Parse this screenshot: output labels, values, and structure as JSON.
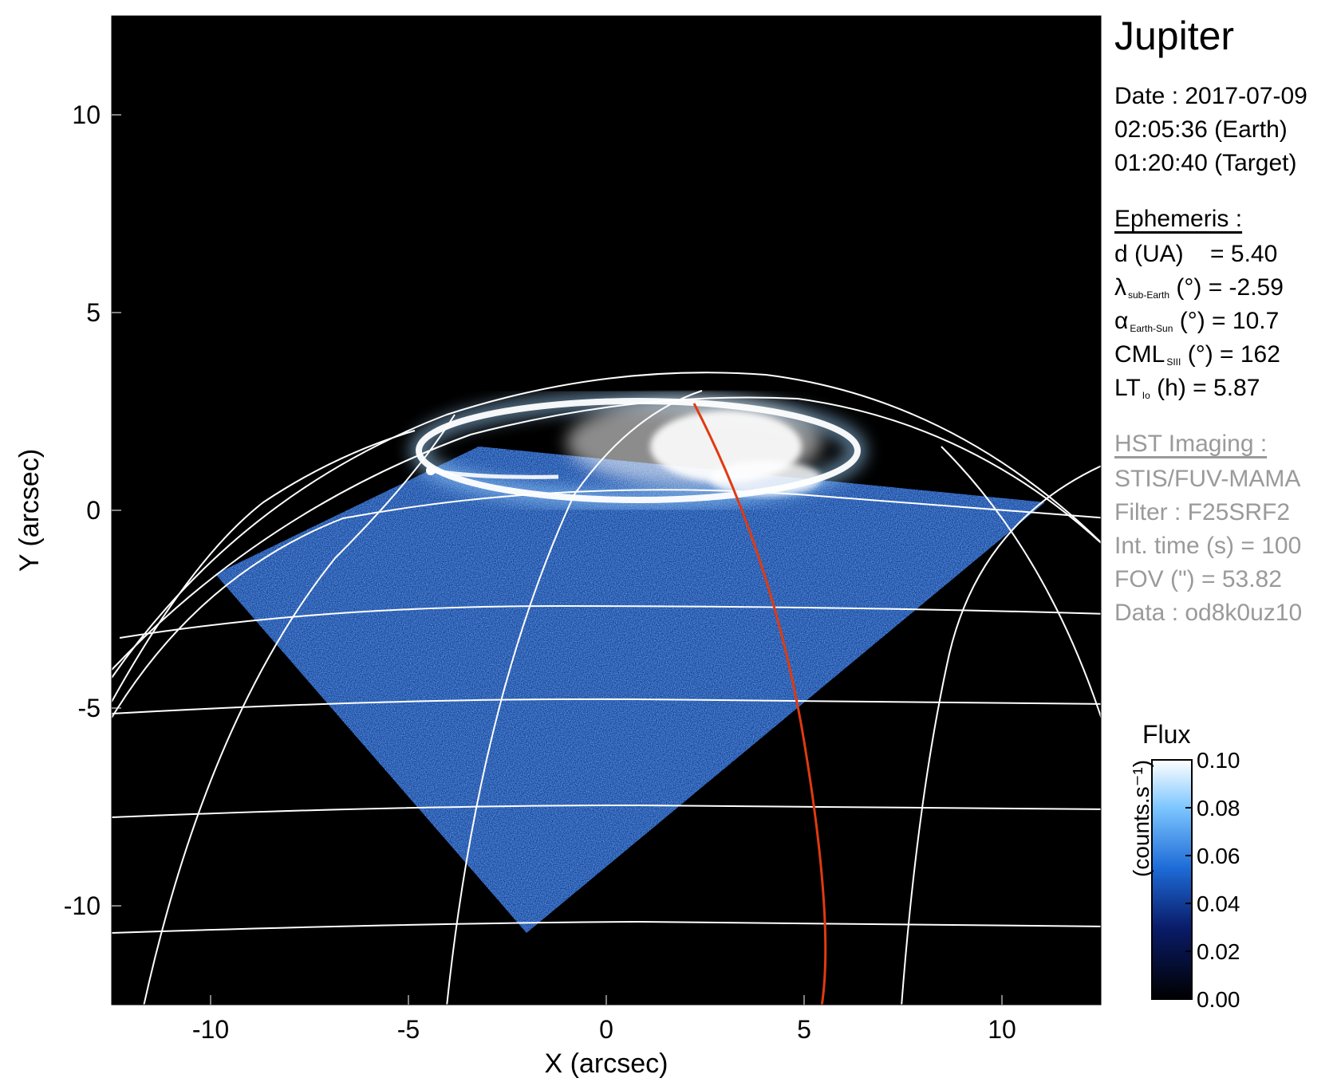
{
  "title": "Jupiter",
  "date": {
    "line1": "Date : 2017-07-09",
    "line2": "02:05:36 (Earth)",
    "line3": "01:20:40 (Target)"
  },
  "ephemeris": {
    "heading": "Ephemeris :",
    "d_label": "d (UA)",
    "d_value": "= 5.40",
    "lambda_sym": "λ",
    "lambda_sub": "sub-Earth",
    "lambda_rest": "(°) = -2.59",
    "alpha_sym": "α",
    "alpha_sub": "Earth-Sun",
    "alpha_rest": "(°) = 10.7",
    "cml_sym": "CML",
    "cml_sub": "SIII",
    "cml_rest": "(°) = 162",
    "lt_sym": "LT",
    "lt_sub": "Io",
    "lt_rest": "(h) = 5.87"
  },
  "hst": {
    "heading": "HST Imaging :",
    "instrument": "STIS/FUV-MAMA",
    "filter": "Filter : F25SRF2",
    "int_time": "Int. time (s) = 100",
    "fov": "FOV (\") = 53.82",
    "data": "Data : od8k0uz10"
  },
  "axes": {
    "xlabel": "X (arcsec)",
    "ylabel": "Y (arcsec)",
    "xlim": [
      -12.5,
      12.5
    ],
    "ylim": [
      -12.5,
      12.5
    ],
    "xticks": [
      "-10",
      "-5",
      "0",
      "5",
      "10"
    ],
    "yticks": [
      "10",
      "5",
      "0",
      "-5",
      "-10"
    ]
  },
  "colorbar": {
    "title": "Flux",
    "unit": "(counts.s⁻¹)",
    "ticks": [
      "0.10",
      "0.08",
      "0.06",
      "0.04",
      "0.02",
      "0.00"
    ],
    "range": [
      0.0,
      0.1
    ]
  },
  "colors": {
    "background": "#000000",
    "grid": "#ffffff",
    "highlight_meridian": "#e03a10",
    "flux_low": "#000000",
    "flux_mid": "#1a5fd0",
    "flux_high": "#ffffff"
  }
}
